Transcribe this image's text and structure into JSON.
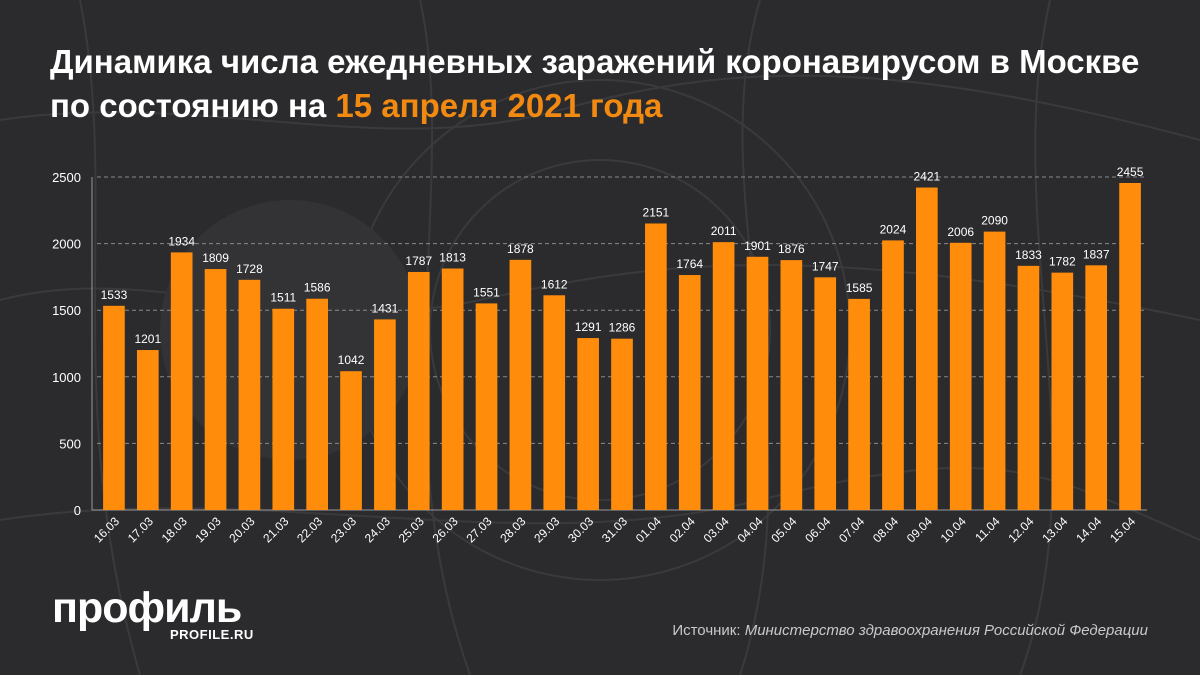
{
  "header": {
    "title_main": "Динамика числа ежедневных заражений коронавирусом в Москве по состоянию на",
    "title_date": "15 апреля 2021 года"
  },
  "footer": {
    "logo": "профиль",
    "logo_url": "PROFILE.RU",
    "source_label": "Источник:",
    "source_name": "Министерство здравоохранения Российской Федерации"
  },
  "colors": {
    "bar": "#ff8c0a",
    "accent": "#f28a12",
    "background": "#2b2b2d"
  },
  "chart_data": {
    "type": "bar",
    "categories": [
      "16.03",
      "17.03",
      "18.03",
      "19.03",
      "20.03",
      "21.03",
      "22.03",
      "23.03",
      "24.03",
      "25.03",
      "26.03",
      "27.03",
      "28.03",
      "29.03",
      "30.03",
      "31.03",
      "01.04",
      "02.04",
      "03.04",
      "04.04",
      "05.04",
      "06.04",
      "07.04",
      "08.04",
      "09.04",
      "10.04",
      "11.04",
      "12.04",
      "13.04",
      "14.04",
      "15.04"
    ],
    "values": [
      1533,
      1201,
      1934,
      1809,
      1728,
      1511,
      1586,
      1042,
      1431,
      1787,
      1813,
      1551,
      1878,
      1612,
      1291,
      1286,
      2151,
      1764,
      2011,
      1901,
      1876,
      1747,
      1585,
      2024,
      2421,
      2006,
      2090,
      1833,
      1782,
      1837,
      2455
    ],
    "yticks": [
      0,
      500,
      1000,
      1500,
      2000,
      2500
    ],
    "ylim": [
      0,
      2500
    ],
    "grid": true,
    "data_labels": true
  }
}
